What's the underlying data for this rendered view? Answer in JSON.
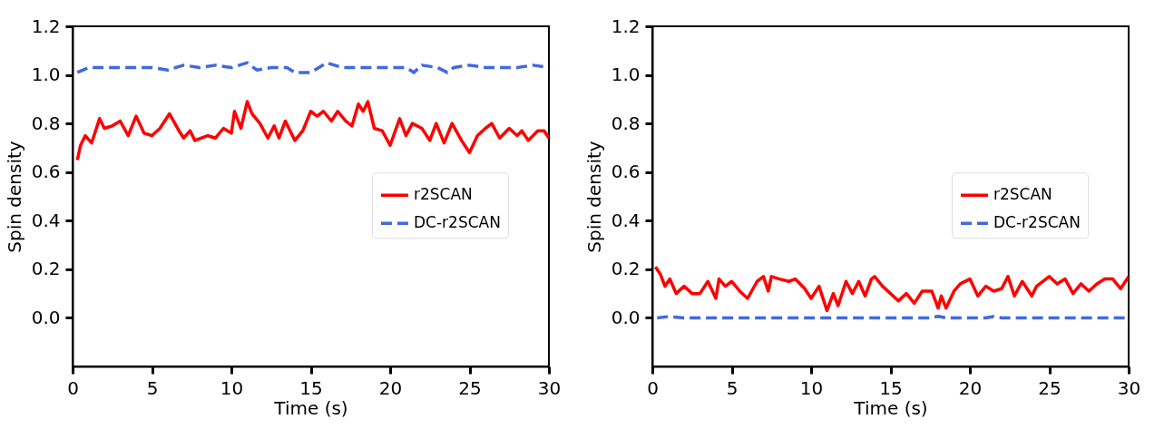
{
  "chart_data": [
    {
      "type": "line",
      "xlabel": "Time (s)",
      "ylabel": "Spin density",
      "xlim": [
        0,
        30
      ],
      "ylim": [
        -0.2,
        1.2
      ],
      "xticks": [
        0,
        5,
        10,
        15,
        20,
        25,
        30
      ],
      "yticks": [
        {
          "value": 0,
          "label": "0.0"
        },
        {
          "value": 0.2,
          "label": "0.2"
        },
        {
          "value": 0.4,
          "label": "0.4"
        },
        {
          "value": 0.6,
          "label": "0.6"
        },
        {
          "value": 0.8,
          "label": "0.8"
        },
        {
          "value": 1.0,
          "label": "1.0"
        },
        {
          "value": 1.2,
          "label": "1.2"
        }
      ],
      "grid": false,
      "legend": "right",
      "series": [
        {
          "name": "r2SCAN",
          "color": "#ff0000",
          "line_style": "solid",
          "x": [
            0.3,
            0.5,
            0.8,
            1.2,
            1.7,
            2.0,
            2.5,
            3.0,
            3.5,
            4.0,
            4.5,
            5.0,
            5.5,
            6.1,
            6.7,
            7.0,
            7.4,
            7.7,
            8.5,
            9.0,
            9.5,
            10.0,
            10.2,
            10.6,
            11.0,
            11.3,
            11.8,
            12.3,
            12.7,
            13.0,
            13.4,
            14.0,
            14.5,
            15.0,
            15.4,
            15.8,
            16.3,
            16.7,
            17.2,
            17.6,
            18.0,
            18.3,
            18.6,
            19.0,
            19.5,
            20.0,
            20.6,
            21.0,
            21.4,
            22.0,
            22.5,
            22.9,
            23.4,
            23.9,
            24.5,
            25.0,
            25.5,
            26.0,
            26.4,
            26.9,
            27.5,
            28.0,
            28.3,
            28.7,
            29.3,
            29.7,
            30.0
          ],
          "values": [
            0.65,
            0.71,
            0.75,
            0.72,
            0.82,
            0.78,
            0.79,
            0.81,
            0.75,
            0.83,
            0.76,
            0.75,
            0.78,
            0.84,
            0.77,
            0.74,
            0.77,
            0.73,
            0.75,
            0.74,
            0.78,
            0.76,
            0.85,
            0.78,
            0.89,
            0.84,
            0.8,
            0.74,
            0.79,
            0.74,
            0.81,
            0.73,
            0.77,
            0.85,
            0.83,
            0.85,
            0.81,
            0.85,
            0.81,
            0.79,
            0.88,
            0.85,
            0.89,
            0.78,
            0.77,
            0.71,
            0.82,
            0.75,
            0.8,
            0.78,
            0.73,
            0.8,
            0.72,
            0.8,
            0.73,
            0.68,
            0.75,
            0.78,
            0.8,
            0.74,
            0.78,
            0.75,
            0.77,
            0.73,
            0.77,
            0.77,
            0.74
          ]
        },
        {
          "name": "DC-r2SCAN",
          "color": "#4169e1",
          "line_style": "dashed",
          "x": [
            0.3,
            1,
            2,
            3,
            4,
            5,
            6,
            7,
            8,
            9,
            10,
            11,
            11.6,
            12.5,
            13.5,
            14,
            15,
            16,
            17,
            18,
            19,
            20,
            21,
            21.5,
            22,
            23,
            23.6,
            24,
            25,
            26,
            27,
            28,
            29,
            30
          ],
          "values": [
            1.01,
            1.03,
            1.03,
            1.03,
            1.03,
            1.03,
            1.02,
            1.04,
            1.03,
            1.04,
            1.03,
            1.05,
            1.02,
            1.03,
            1.03,
            1.01,
            1.01,
            1.05,
            1.03,
            1.03,
            1.03,
            1.03,
            1.03,
            1.01,
            1.04,
            1.03,
            1.01,
            1.03,
            1.04,
            1.03,
            1.03,
            1.03,
            1.04,
            1.03
          ]
        }
      ]
    },
    {
      "type": "line",
      "xlabel": "Time (s)",
      "ylabel": "Spin density",
      "xlim": [
        0,
        30
      ],
      "ylim": [
        -0.2,
        1.2
      ],
      "xticks": [
        0,
        5,
        10,
        15,
        20,
        25,
        30
      ],
      "yticks": [
        {
          "value": 0,
          "label": "0.0"
        },
        {
          "value": 0.2,
          "label": "0.2"
        },
        {
          "value": 0.4,
          "label": "0.4"
        },
        {
          "value": 0.6,
          "label": "0.6"
        },
        {
          "value": 0.8,
          "label": "0.8"
        },
        {
          "value": 1.0,
          "label": "1.0"
        },
        {
          "value": 1.2,
          "label": "1.2"
        }
      ],
      "grid": false,
      "legend": "right",
      "series": [
        {
          "name": "r2SCAN",
          "color": "#ff0000",
          "line_style": "solid",
          "x": [
            0.2,
            0.5,
            0.8,
            1.1,
            1.5,
            2,
            2.5,
            3,
            3.5,
            4,
            4.2,
            4.6,
            5,
            5.5,
            6,
            6.6,
            7,
            7.3,
            7.5,
            8,
            8.6,
            9,
            9.6,
            10,
            10.5,
            11,
            11.4,
            11.7,
            12,
            12.2,
            12.6,
            13,
            13.4,
            13.8,
            14,
            14.5,
            15,
            15.5,
            16,
            16.5,
            17,
            17.6,
            18,
            18.2,
            18.5,
            19,
            19.4,
            20,
            20.5,
            21,
            21.5,
            22,
            22.4,
            22.8,
            23.3,
            23.9,
            24.2,
            25,
            25.5,
            26,
            26.5,
            27,
            27.5,
            28,
            28.5,
            29,
            29.5,
            30
          ],
          "values": [
            0.21,
            0.18,
            0.13,
            0.16,
            0.1,
            0.13,
            0.1,
            0.1,
            0.15,
            0.08,
            0.16,
            0.13,
            0.15,
            0.11,
            0.08,
            0.15,
            0.17,
            0.11,
            0.17,
            0.16,
            0.15,
            0.16,
            0.12,
            0.08,
            0.13,
            0.03,
            0.1,
            0.05,
            0.11,
            0.15,
            0.1,
            0.15,
            0.09,
            0.16,
            0.17,
            0.13,
            0.1,
            0.07,
            0.1,
            0.06,
            0.11,
            0.11,
            0.04,
            0.09,
            0.04,
            0.11,
            0.14,
            0.16,
            0.09,
            0.13,
            0.11,
            0.12,
            0.17,
            0.09,
            0.15,
            0.09,
            0.13,
            0.17,
            0.14,
            0.16,
            0.1,
            0.14,
            0.11,
            0.14,
            0.16,
            0.16,
            0.12,
            0.17
          ]
        },
        {
          "name": "DC-r2SCAN",
          "color": "#4169e1",
          "line_style": "dashed",
          "x": [
            0.3,
            1,
            2,
            5,
            10,
            15,
            17.5,
            18,
            18.5,
            19,
            20,
            21,
            21.5,
            22,
            25,
            30
          ],
          "values": [
            0.0,
            0.005,
            0.0,
            0.0,
            0.0,
            0.0,
            0.0,
            0.006,
            0.0,
            0.0,
            0.0,
            0.0,
            0.005,
            0.0,
            0.0,
            0.0
          ]
        }
      ]
    }
  ]
}
